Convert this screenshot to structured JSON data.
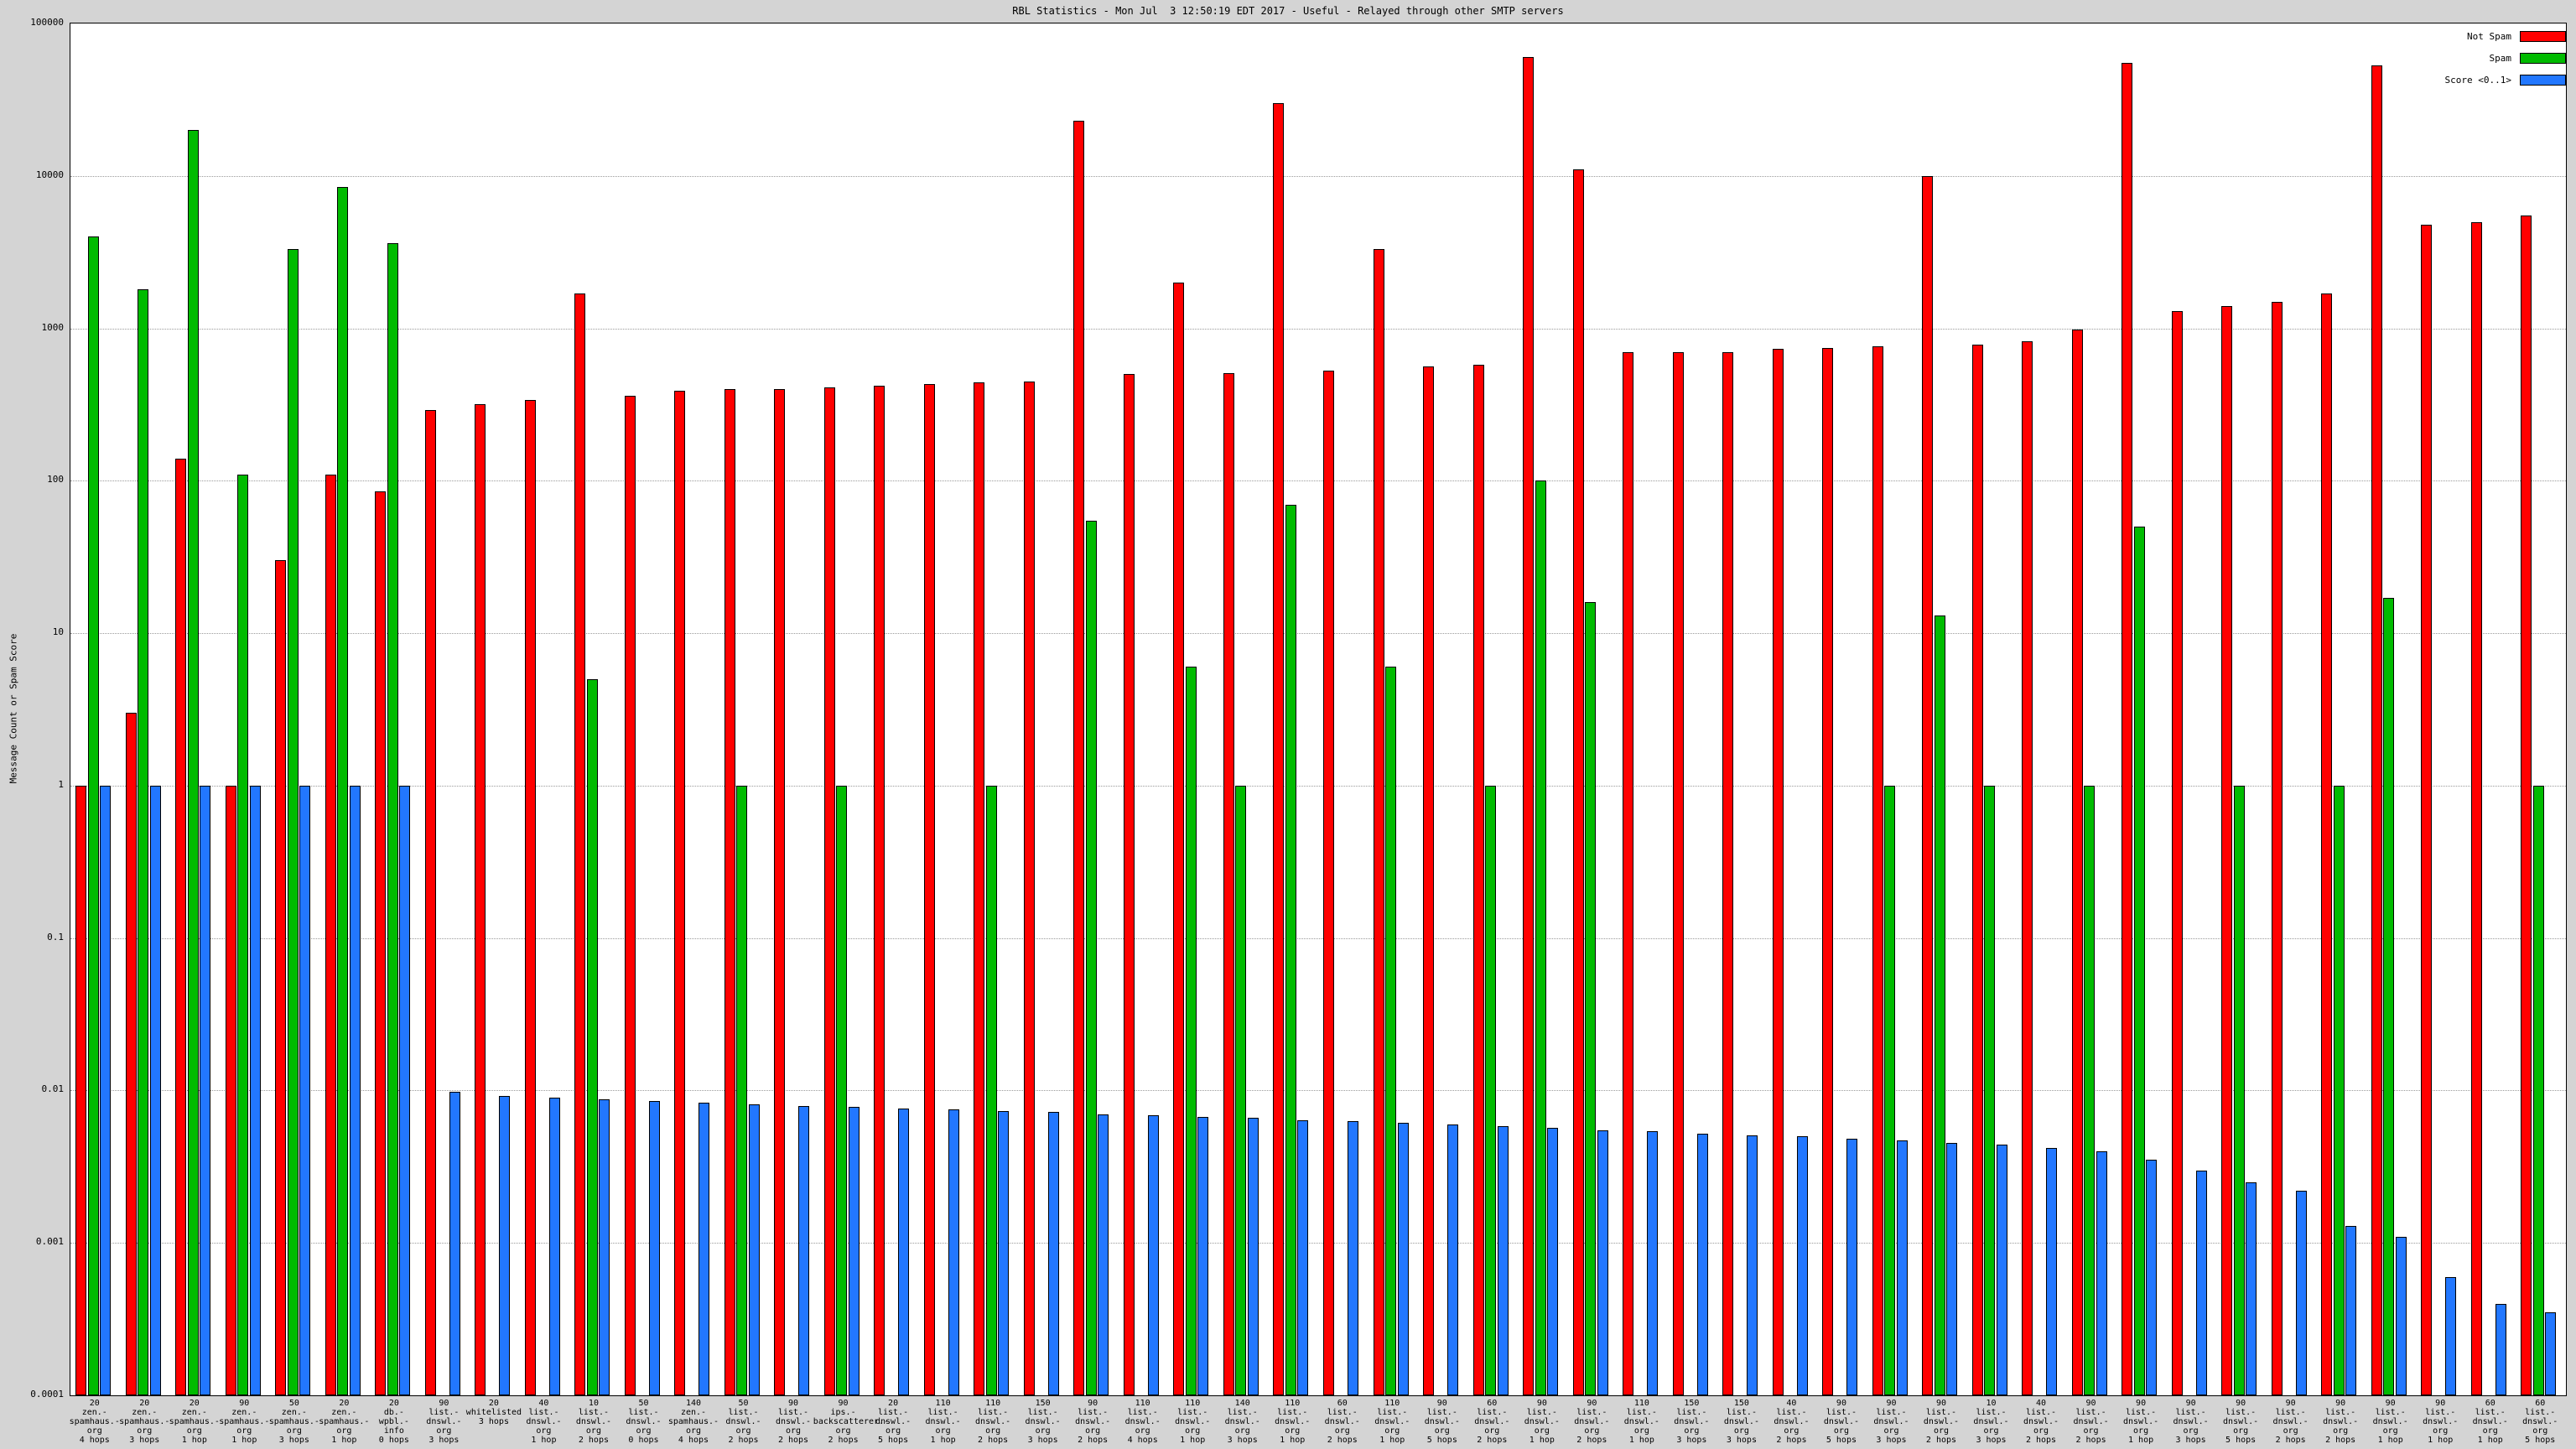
{
  "title": "RBL Statistics - Mon Jul  3 12:50:19 EDT 2017 - Useful - Relayed through other SMTP servers",
  "y_axis": {
    "label": "Message Count or Spam Score",
    "ticks": [
      "100000",
      "10000",
      "1000",
      "100",
      "10",
      "1",
      "0.1",
      "0.01",
      "0.001",
      "0.0001"
    ]
  },
  "legend": [
    {
      "label": "Not Spam",
      "color": "#ff0000"
    },
    {
      "label": "Spam",
      "color": "#00bb00"
    },
    {
      "label": "Score <0..1>",
      "color": "#2277ff"
    }
  ],
  "colors": {
    "not_spam": "#ff0000",
    "spam": "#00bb00",
    "score": "#2277ff",
    "background": "#d4d4d4",
    "plot_background": "#ffffff",
    "gridline": "#9a9a9a"
  },
  "chart_data": {
    "type": "bar",
    "scale": "log",
    "ylim": [
      0.0001,
      100000
    ],
    "grid": true,
    "legend_position": "top-right",
    "series_names": [
      "Not Spam",
      "Spam",
      "Score <0..1>"
    ],
    "clusters": [
      {
        "label": [
          "20",
          "zen.-",
          "spamhaus.-",
          "org",
          "4 hops"
        ],
        "not_spam": 1,
        "spam": 4000,
        "score": 1
      },
      {
        "label": [
          "20",
          "zen.-",
          "spamhaus.-",
          "org",
          "3 hops"
        ],
        "not_spam": 3,
        "spam": 1800,
        "score": 1
      },
      {
        "label": [
          "20",
          "zen.-",
          "spamhaus.-",
          "org",
          "1 hop"
        ],
        "not_spam": 140,
        "spam": 20000,
        "score": 1
      },
      {
        "label": [
          "90",
          "zen.-",
          "spamhaus.-",
          "org",
          "1 hop"
        ],
        "not_spam": 1,
        "spam": 110,
        "score": 1
      },
      {
        "label": [
          "50",
          "zen.-",
          "spamhaus.-",
          "org",
          "3 hops"
        ],
        "not_spam": 30,
        "spam": 3300,
        "score": 1
      },
      {
        "label": [
          "20",
          "zen.-",
          "spamhaus.-",
          "org",
          "1 hop"
        ],
        "not_spam": 110,
        "spam": 8500,
        "score": 1
      },
      {
        "label": [
          "20",
          "db.-",
          "wpbl.-",
          "info",
          "0 hops"
        ],
        "not_spam": 85,
        "spam": 3600,
        "score": 1
      },
      {
        "label": [
          "90",
          "list.-",
          "dnswl.-",
          "org",
          "3 hops"
        ],
        "not_spam": 290,
        "spam": null,
        "score": 0.0098
      },
      {
        "label": [
          "20",
          "whitelisted",
          "3 hops"
        ],
        "not_spam": 320,
        "spam": null,
        "score": 0.0092
      },
      {
        "label": [
          "40",
          "list.-",
          "dnswl.-",
          "org",
          "1 hop"
        ],
        "not_spam": 340,
        "spam": null,
        "score": 0.009
      },
      {
        "label": [
          "10",
          "list.-",
          "dnswl.-",
          "org",
          "2 hops"
        ],
        "not_spam": 1700,
        "spam": 5,
        "score": 0.0087
      },
      {
        "label": [
          "50",
          "list.-",
          "dnswl.-",
          "org",
          "0 hops"
        ],
        "not_spam": 360,
        "spam": null,
        "score": 0.0085
      },
      {
        "label": [
          "140",
          "zen.-",
          "spamhaus.-",
          "org",
          "4 hops"
        ],
        "not_spam": 390,
        "spam": null,
        "score": 0.0083
      },
      {
        "label": [
          "50",
          "list.-",
          "dnswl.-",
          "org",
          "2 hops"
        ],
        "not_spam": 400,
        "spam": 1,
        "score": 0.0081
      },
      {
        "label": [
          "90",
          "list.-",
          "dnswl.-",
          "org",
          "2 hops"
        ],
        "not_spam": 400,
        "spam": null,
        "score": 0.0079
      },
      {
        "label": [
          "90",
          "ips.-",
          "backscatterer.-",
          "org",
          "2 hops"
        ],
        "not_spam": 410,
        "spam": 1,
        "score": 0.0078
      },
      {
        "label": [
          "20",
          "list.-",
          "dnswl.-",
          "org",
          "5 hops"
        ],
        "not_spam": 420,
        "spam": null,
        "score": 0.0076
      },
      {
        "label": [
          "110",
          "list.-",
          "dnswl.-",
          "org",
          "1 hop"
        ],
        "not_spam": 430,
        "spam": null,
        "score": 0.0075
      },
      {
        "label": [
          "110",
          "list.-",
          "dnswl.-",
          "org",
          "2 hops"
        ],
        "not_spam": 440,
        "spam": 1,
        "score": 0.0073
      },
      {
        "label": [
          "150",
          "list.-",
          "dnswl.-",
          "org",
          "3 hops"
        ],
        "not_spam": 450,
        "spam": null,
        "score": 0.0072
      },
      {
        "label": [
          "90",
          "list.-",
          "dnswl.-",
          "org",
          "2 hops"
        ],
        "not_spam": 23000,
        "spam": 55,
        "score": 0.007
      },
      {
        "label": [
          "110",
          "list.-",
          "dnswl.-",
          "org",
          "4 hops"
        ],
        "not_spam": 500,
        "spam": null,
        "score": 0.0069
      },
      {
        "label": [
          "110",
          "list.-",
          "dnswl.-",
          "org",
          "1 hop"
        ],
        "not_spam": 2000,
        "spam": 6,
        "score": 0.0067
      },
      {
        "label": [
          "140",
          "list.-",
          "dnswl.-",
          "org",
          "3 hops"
        ],
        "not_spam": 510,
        "spam": 1,
        "score": 0.0066
      },
      {
        "label": [
          "110",
          "list.-",
          "dnswl.-",
          "org",
          "1 hop"
        ],
        "not_spam": 30000,
        "spam": 70,
        "score": 0.0064
      },
      {
        "label": [
          "60",
          "list.-",
          "dnswl.-",
          "org",
          "2 hops"
        ],
        "not_spam": 530,
        "spam": null,
        "score": 0.0063
      },
      {
        "label": [
          "110",
          "list.-",
          "dnswl.-",
          "org",
          "1 hop"
        ],
        "not_spam": 3300,
        "spam": 6,
        "score": 0.0061
      },
      {
        "label": [
          "90",
          "list.-",
          "dnswl.-",
          "org",
          "5 hops"
        ],
        "not_spam": 560,
        "spam": null,
        "score": 0.006
      },
      {
        "label": [
          "60",
          "list.-",
          "dnswl.-",
          "org",
          "2 hops"
        ],
        "not_spam": 580,
        "spam": 1,
        "score": 0.0058
      },
      {
        "label": [
          "90",
          "list.-",
          "dnswl.-",
          "org",
          "1 hop"
        ],
        "not_spam": 60000,
        "spam": 100,
        "score": 0.0057
      },
      {
        "label": [
          "90",
          "list.-",
          "dnswl.-",
          "org",
          "2 hops"
        ],
        "not_spam": 11000,
        "spam": 16,
        "score": 0.0055
      },
      {
        "label": [
          "110",
          "list.-",
          "dnswl.-",
          "org",
          "1 hop"
        ],
        "not_spam": 700,
        "spam": null,
        "score": 0.0054
      },
      {
        "label": [
          "150",
          "list.-",
          "dnswl.-",
          "org",
          "3 hops"
        ],
        "not_spam": 700,
        "spam": null,
        "score": 0.0052
      },
      {
        "label": [
          "150",
          "list.-",
          "dnswl.-",
          "org",
          "3 hops"
        ],
        "not_spam": 700,
        "spam": null,
        "score": 0.0051
      },
      {
        "label": [
          "40",
          "list.-",
          "dnswl.-",
          "org",
          "2 hops"
        ],
        "not_spam": 730,
        "spam": null,
        "score": 0.005
      },
      {
        "label": [
          "90",
          "list.-",
          "dnswl.-",
          "org",
          "5 hops"
        ],
        "not_spam": 740,
        "spam": null,
        "score": 0.0048
      },
      {
        "label": [
          "90",
          "list.-",
          "dnswl.-",
          "org",
          "3 hops"
        ],
        "not_spam": 760,
        "spam": 1,
        "score": 0.0047
      },
      {
        "label": [
          "90",
          "list.-",
          "dnswl.-",
          "org",
          "2 hops"
        ],
        "not_spam": 10000,
        "spam": 13,
        "score": 0.0045
      },
      {
        "label": [
          "10",
          "list.-",
          "dnswl.-",
          "org",
          "3 hops"
        ],
        "not_spam": 780,
        "spam": 1,
        "score": 0.0044
      },
      {
        "label": [
          "40",
          "list.-",
          "dnswl.-",
          "org",
          "2 hops"
        ],
        "not_spam": 820,
        "spam": null,
        "score": 0.0042
      },
      {
        "label": [
          "90",
          "list.-",
          "dnswl.-",
          "org",
          "2 hops"
        ],
        "not_spam": 980,
        "spam": 1,
        "score": 0.004
      },
      {
        "label": [
          "90",
          "list.-",
          "dnswl.-",
          "org",
          "1 hop"
        ],
        "not_spam": 55000,
        "spam": 50,
        "score": 0.0035
      },
      {
        "label": [
          "90",
          "list.-",
          "dnswl.-",
          "org",
          "3 hops"
        ],
        "not_spam": 1300,
        "spam": null,
        "score": 0.003
      },
      {
        "label": [
          "90",
          "list.-",
          "dnswl.-",
          "org",
          "5 hops"
        ],
        "not_spam": 1400,
        "spam": 1,
        "score": 0.0025
      },
      {
        "label": [
          "90",
          "list.-",
          "dnswl.-",
          "org",
          "2 hops"
        ],
        "not_spam": 1500,
        "spam": null,
        "score": 0.0022
      },
      {
        "label": [
          "90",
          "list.-",
          "dnswl.-",
          "org",
          "2 hops"
        ],
        "not_spam": 1700,
        "spam": 1,
        "score": 0.0013
      },
      {
        "label": [
          "90",
          "list.-",
          "dnswl.-",
          "org",
          "1 hop"
        ],
        "not_spam": 53000,
        "spam": 17,
        "score": 0.0011
      },
      {
        "label": [
          "90",
          "list.-",
          "dnswl.-",
          "org",
          "1 hop"
        ],
        "not_spam": 4800,
        "spam": null,
        "score": 0.0006
      },
      {
        "label": [
          "60",
          "list.-",
          "dnswl.-",
          "org",
          "1 hop"
        ],
        "not_spam": 5000,
        "spam": null,
        "score": 0.0004
      },
      {
        "label": [
          "60",
          "list.-",
          "dnswl.-",
          "org",
          "5 hops"
        ],
        "not_spam": 5500,
        "spam": 1,
        "score": 0.00035
      }
    ]
  }
}
